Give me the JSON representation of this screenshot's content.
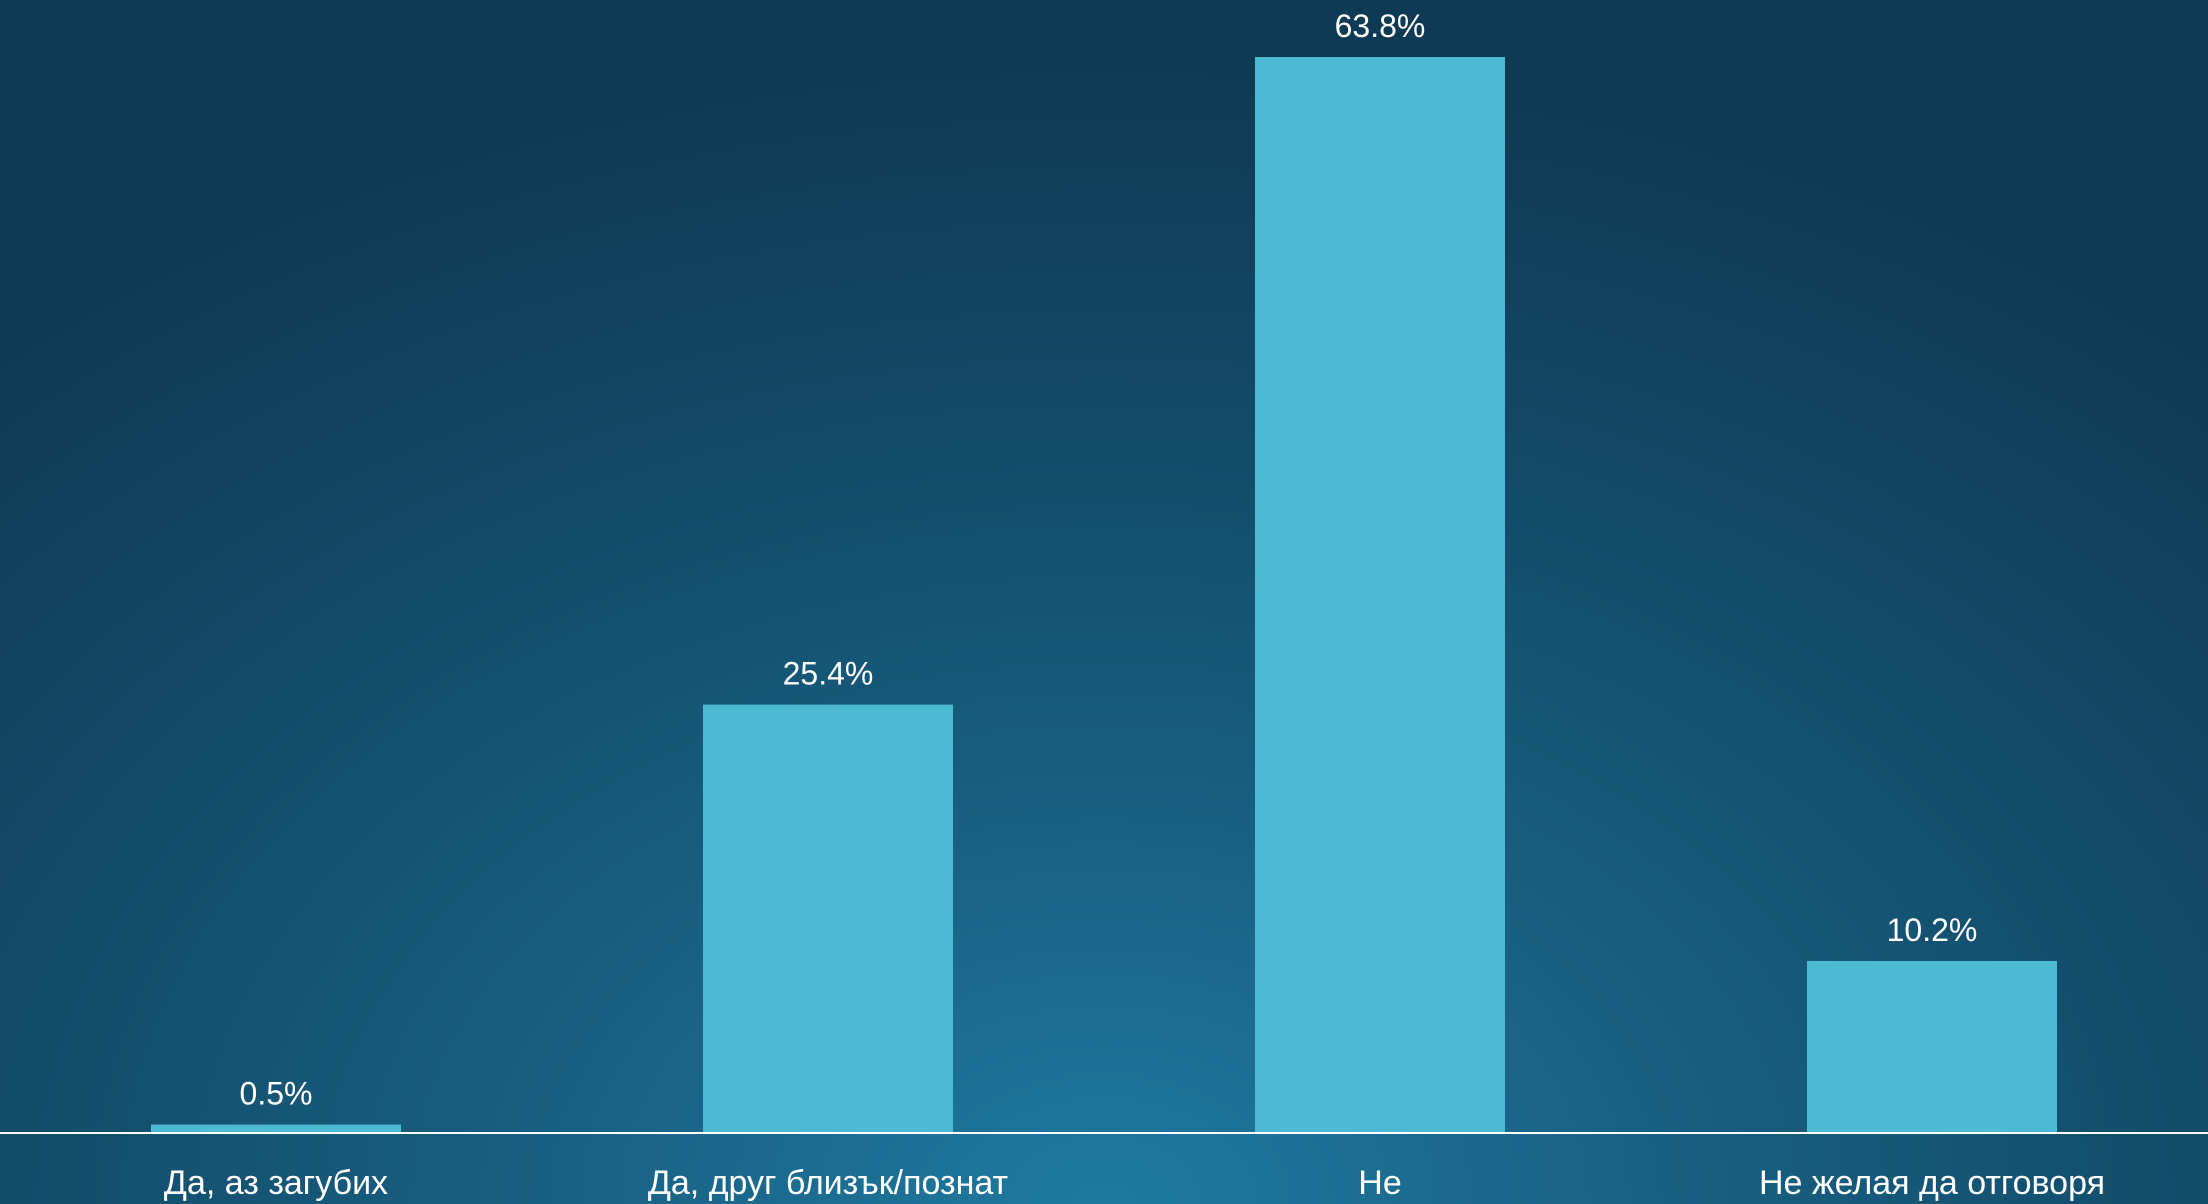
{
  "chart_data": {
    "type": "bar",
    "categories": [
      "Да, аз загубих",
      "Да, друг близък/познат",
      "Не",
      "Не желая да отговоря"
    ],
    "values": [
      0.5,
      25.4,
      63.8,
      10.2
    ],
    "value_labels": [
      "0.5%",
      "25.4%",
      "63.8%",
      "10.2%"
    ],
    "ylim": [
      0,
      63.8
    ],
    "grid": false,
    "legend": "none",
    "bar_color": "#4bbad2",
    "axis_color": "#ffffff",
    "text_color": "#ffffff"
  }
}
